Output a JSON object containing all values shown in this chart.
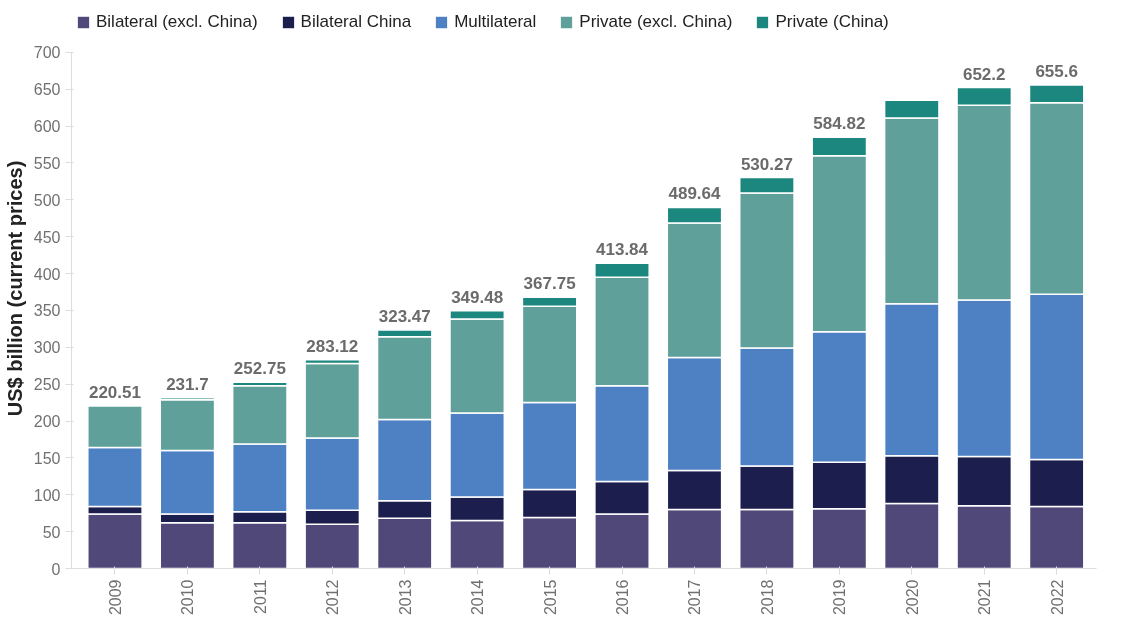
{
  "chart_data": {
    "type": "bar",
    "stacked": true,
    "ylabel": "US$ billion (current prices)",
    "categories": [
      "2009",
      "2010",
      "2011",
      "2012",
      "2013",
      "2014",
      "2015",
      "2016",
      "2017",
      "2018",
      "2019",
      "2020",
      "2021",
      "2022"
    ],
    "series": [
      {
        "name": "Bilateral (excl. China)",
        "color": "#4f4878",
        "values": [
          74,
          62,
          62,
          60,
          68,
          65,
          69,
          74,
          80,
          80,
          81,
          88,
          85,
          84
        ]
      },
      {
        "name": "Bilateral China",
        "color": "#1c1f4e",
        "values": [
          10,
          12,
          15,
          19,
          24,
          32,
          38,
          44,
          53,
          59,
          63,
          65,
          67,
          64
        ]
      },
      {
        "name": "Multilateral",
        "color": "#4e80c4",
        "values": [
          80,
          86,
          92,
          98,
          110,
          114,
          118,
          130,
          153,
          160,
          177,
          206,
          212,
          224
        ]
      },
      {
        "name": "Private (excl. China)",
        "color": "#5fa19a",
        "values": [
          56.51,
          68.7,
          78.75,
          101.12,
          112.47,
          127.48,
          130.75,
          146.84,
          182.64,
          210.27,
          238.82,
          252,
          264.2,
          259.6
        ]
      },
      {
        "name": "Private (China)",
        "color": "#1b877e",
        "values": [
          null,
          3,
          5,
          5,
          9,
          11,
          12,
          19,
          21,
          21,
          25,
          24,
          24,
          24
        ]
      }
    ],
    "totals": [
      "220.51",
      "231.7",
      "252.75",
      "283.12",
      "323.47",
      "349.48",
      "367.75",
      "413.84",
      "489.64",
      "530.27",
      "584.82",
      null,
      "652.2",
      "655.6"
    ],
    "ylim": [
      0,
      700
    ],
    "yticks": [
      0,
      50,
      100,
      150,
      200,
      250,
      300,
      350,
      400,
      450,
      500,
      550,
      600,
      650,
      700
    ],
    "grid": false,
    "legend": "top left"
  }
}
